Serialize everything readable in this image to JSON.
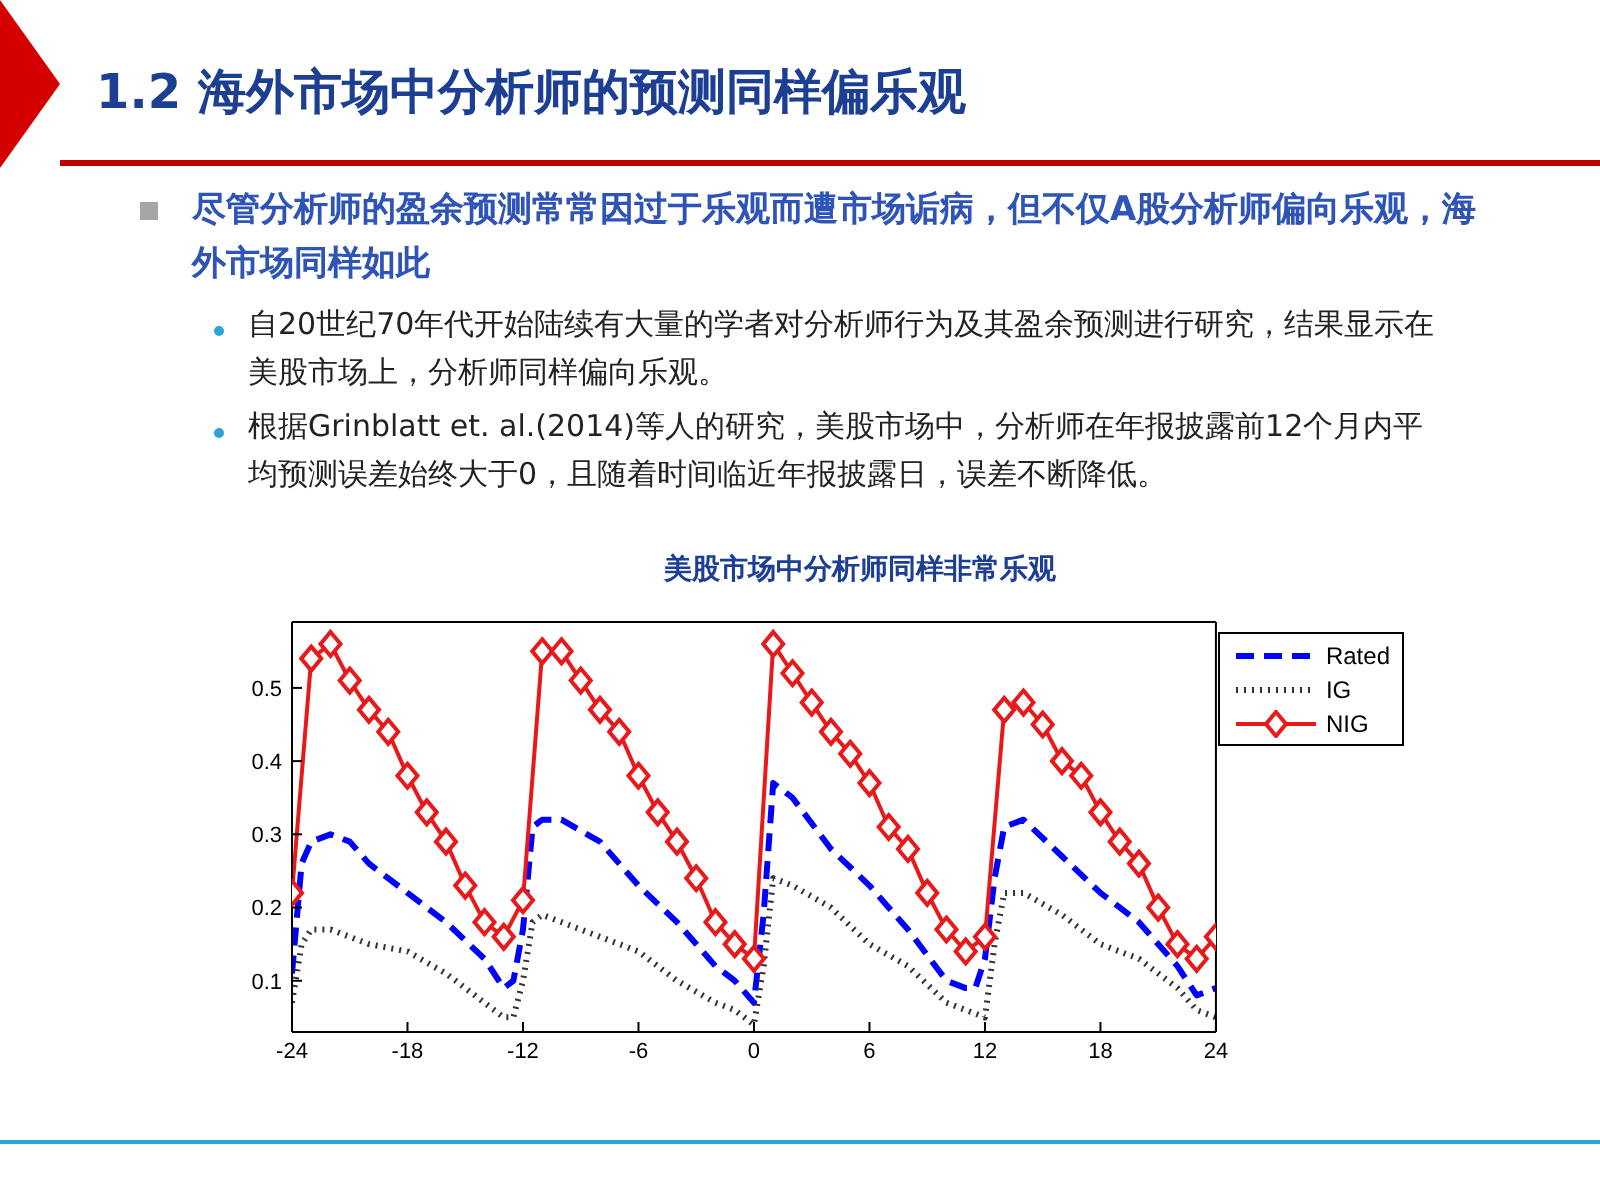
{
  "chart_data": {
    "type": "line",
    "title": "1.2 海外市场中分析师的预测同样偏乐观",
    "subtitle": "美股市场中分析师同样非常乐观",
    "annotations": [
      "尽管分析师的盈余预测常常因过于乐观而遭市场诟病，但不仅A股分析师偏向乐观，海外市场同样如此",
      "自20世纪70年代开始陆续有大量的学者对分析师行为及其盈余预测进行研究，结果显示在美股市场上，分析师同样偏向乐观。",
      "根据Grinblatt  et.  al.(2014)等人的研究，美股市场中，分析师在年报披露前12个月内平均预测误差始终大于0，且随着时间临近年报披露日，误差不断降低。"
    ],
    "series": [
      {
        "name": "Rated",
        "color": "#0000ff",
        "line_style": "dashed",
        "marker": "none",
        "x": [
          -24,
          -23.5,
          -23,
          -22,
          -21,
          -20,
          -18,
          -16,
          -14,
          -13,
          -12.5,
          -12,
          -11.5,
          -11,
          -10,
          -8,
          -7,
          -6,
          -4,
          -2,
          -1,
          0,
          0.5,
          1,
          2,
          4,
          6,
          8,
          10,
          11,
          11.5,
          12,
          12.5,
          13,
          14,
          16,
          18,
          20,
          22,
          23,
          24
        ],
        "values": [
          0.11,
          0.26,
          0.29,
          0.3,
          0.29,
          0.26,
          0.22,
          0.18,
          0.13,
          0.09,
          0.1,
          0.17,
          0.31,
          0.32,
          0.32,
          0.29,
          0.26,
          0.23,
          0.18,
          0.12,
          0.1,
          0.07,
          0.19,
          0.37,
          0.35,
          0.28,
          0.23,
          0.17,
          0.1,
          0.09,
          0.09,
          0.13,
          0.24,
          0.31,
          0.32,
          0.27,
          0.22,
          0.18,
          0.12,
          0.08,
          0.09
        ]
      },
      {
        "name": "IG",
        "color": "#333333",
        "line_style": "dotted",
        "marker": "none",
        "x": [
          -24,
          -23.5,
          -23,
          -22,
          -20,
          -18,
          -16,
          -14,
          -13,
          -12.5,
          -12,
          -11.5,
          -11,
          -10,
          -8,
          -7,
          -6,
          -4,
          -2,
          -1,
          0,
          0.5,
          1,
          2,
          4,
          6,
          8,
          10,
          11,
          12,
          12.5,
          13,
          14,
          16,
          18,
          20,
          22,
          23,
          24
        ],
        "values": [
          0.07,
          0.15,
          0.17,
          0.17,
          0.15,
          0.14,
          0.11,
          0.07,
          0.05,
          0.05,
          0.1,
          0.18,
          0.19,
          0.18,
          0.16,
          0.15,
          0.14,
          0.1,
          0.07,
          0.06,
          0.04,
          0.12,
          0.24,
          0.23,
          0.2,
          0.15,
          0.12,
          0.07,
          0.06,
          0.05,
          0.15,
          0.22,
          0.22,
          0.19,
          0.15,
          0.13,
          0.09,
          0.06,
          0.05
        ]
      },
      {
        "name": "NIG",
        "color": "#e8191a",
        "line_style": "solid",
        "marker": "diamond",
        "x": [
          -24,
          -23,
          -22,
          -21,
          -20,
          -19,
          -18,
          -17,
          -16,
          -15,
          -14,
          -13,
          -12,
          -11,
          -10,
          -9,
          -8,
          -7,
          -6,
          -5,
          -4,
          -3,
          -2,
          -1,
          0,
          1,
          2,
          3,
          4,
          5,
          6,
          7,
          8,
          9,
          10,
          11,
          12,
          13,
          14,
          15,
          16,
          17,
          18,
          19,
          20,
          21,
          22,
          23,
          24
        ],
        "values": [
          0.22,
          0.54,
          0.56,
          0.51,
          0.47,
          0.44,
          0.38,
          0.33,
          0.29,
          0.23,
          0.18,
          0.16,
          0.21,
          0.55,
          0.55,
          0.51,
          0.47,
          0.44,
          0.38,
          0.33,
          0.29,
          0.24,
          0.18,
          0.15,
          0.13,
          0.56,
          0.52,
          0.48,
          0.44,
          0.41,
          0.37,
          0.31,
          0.28,
          0.22,
          0.17,
          0.14,
          0.16,
          0.47,
          0.48,
          0.45,
          0.4,
          0.38,
          0.33,
          0.29,
          0.26,
          0.2,
          0.15,
          0.13,
          0.16
        ]
      }
    ],
    "xlim": [
      -24,
      24
    ],
    "xticks": [
      -24,
      -18,
      -12,
      -6,
      0,
      6,
      12,
      18,
      24
    ],
    "ylim": [
      0.03,
      0.59
    ],
    "yticks": [
      0.1,
      0.2,
      0.3,
      0.4,
      0.5
    ],
    "grid": false,
    "legend": "top right"
  }
}
